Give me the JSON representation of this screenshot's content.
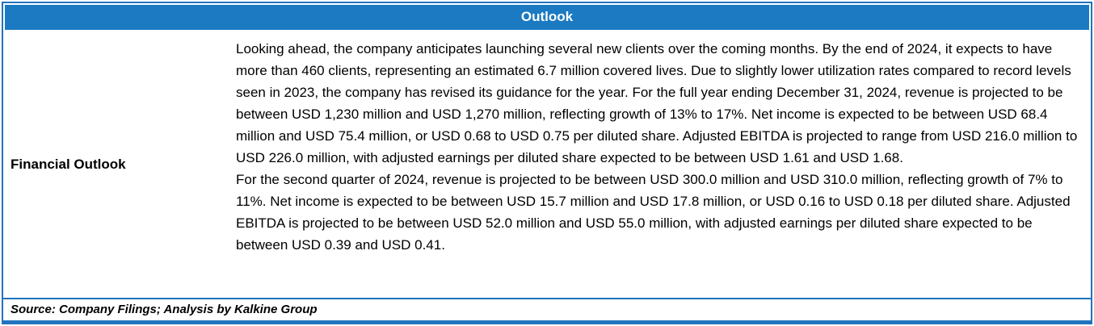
{
  "title": "Outlook",
  "section": {
    "label": "Financial Outlook",
    "paragraphs": [
      "Looking ahead, the company anticipates launching several new clients over the coming months. By the end of 2024, it expects to have more than 460 clients, representing an estimated 6.7 million covered lives. Due to slightly lower utilization rates compared to record levels seen in 2023, the company has revised its guidance for the year. For the full year ending December 31, 2024, revenue is projected to be between USD 1,230 million and USD 1,270 million, reflecting growth of 13% to 17%. Net income is expected to be between USD 68.4 million and USD 75.4 million, or USD 0.68 to USD 0.75 per diluted share. Adjusted EBITDA is projected to range from USD 216.0 million to USD 226.0 million, with adjusted earnings per diluted share expected to be between USD 1.61 and USD 1.68.",
      "For the second quarter of 2024, revenue is projected to be between USD 300.0 million and USD 310.0 million, reflecting growth of 7% to 11%. Net income is expected to be between USD 15.7 million and USD 17.8 million, or USD 0.16 to USD 0.18 per diluted share. Adjusted EBITDA is projected to be between USD 52.0 million and USD 55.0 million, with adjusted earnings per diluted share expected to be between USD 0.39 and USD 0.41."
    ]
  },
  "source_note": "Source: Company Filings; Analysis by Kalkine Group",
  "colors": {
    "header_bg": "#1b7ac2",
    "border": "#2173be"
  }
}
